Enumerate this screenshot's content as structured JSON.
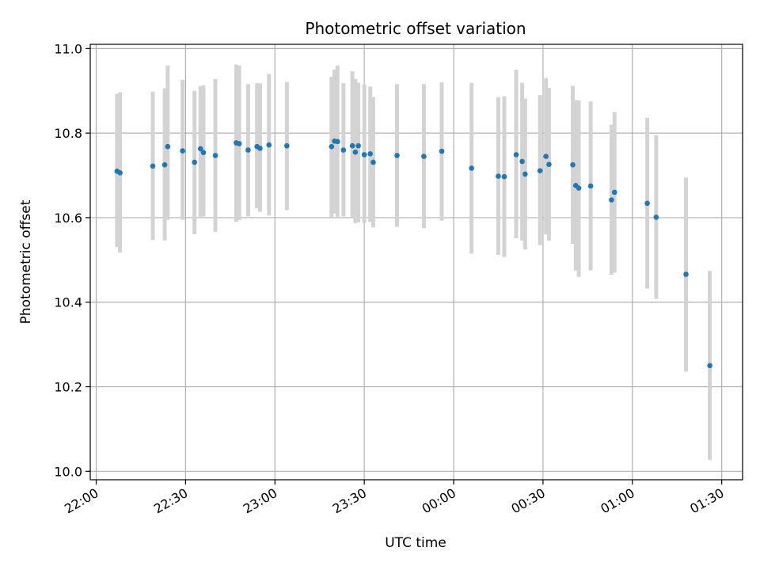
{
  "chart_data": {
    "type": "scatter",
    "title": "Photometric offset variation",
    "xlabel": "UTC time",
    "ylabel": "Photometric offset",
    "grid": true,
    "xlim": [
      "21:58",
      "01:37"
    ],
    "ylim": [
      9.98,
      11.01
    ],
    "x_ticks": [
      "22:00",
      "22:30",
      "23:00",
      "23:30",
      "00:00",
      "00:30",
      "01:00",
      "01:30"
    ],
    "y_ticks": [
      "10.0",
      "10.2",
      "10.4",
      "10.6",
      "10.8",
      "11.0"
    ],
    "colors": {
      "point": "#1f77b4",
      "errorbar": "#d3d3d3",
      "grid": "#b0b0b0"
    },
    "series": [
      {
        "x": [
          "22:07",
          "22:08",
          "22:19",
          "22:23",
          "22:24",
          "22:29",
          "22:33",
          "22:35",
          "22:36",
          "22:40",
          "22:47",
          "22:48",
          "22:51",
          "22:54",
          "22:55",
          "22:58",
          "23:04",
          "23:19",
          "23:20",
          "23:21",
          "23:23",
          "23:26",
          "23:27",
          "23:28",
          "23:30",
          "23:32",
          "23:33",
          "23:41",
          "23:50",
          "23:56",
          "00:06",
          "00:15",
          "00:17",
          "00:21",
          "00:23",
          "00:24",
          "00:29",
          "00:31",
          "00:32",
          "00:40",
          "00:41",
          "00:42",
          "00:46",
          "00:53",
          "00:54",
          "01:05",
          "01:08",
          "01:18",
          "01:26"
        ],
        "y": [
          10.71,
          10.706,
          10.722,
          10.725,
          10.768,
          10.758,
          10.731,
          10.763,
          10.754,
          10.747,
          10.777,
          10.775,
          10.76,
          10.768,
          10.764,
          10.772,
          10.77,
          10.768,
          10.781,
          10.78,
          10.76,
          10.77,
          10.755,
          10.77,
          10.749,
          10.751,
          10.731,
          10.747,
          10.745,
          10.757,
          10.717,
          10.698,
          10.697,
          10.749,
          10.733,
          10.703,
          10.711,
          10.745,
          10.726,
          10.725,
          10.676,
          10.67,
          10.675,
          10.642,
          10.66,
          10.634,
          10.601,
          10.466,
          10.25
        ],
        "err_low": [
          10.53,
          10.518,
          10.547,
          10.546,
          10.595,
          10.595,
          10.561,
          10.602,
          10.603,
          10.566,
          10.59,
          10.594,
          10.603,
          10.622,
          10.614,
          10.605,
          10.618,
          10.6,
          10.61,
          10.602,
          10.603,
          10.6,
          10.587,
          10.589,
          10.588,
          10.59,
          10.577,
          10.578,
          10.575,
          10.593,
          10.515,
          10.512,
          10.507,
          10.551,
          10.546,
          10.525,
          10.535,
          10.56,
          10.546,
          10.538,
          10.475,
          10.46,
          10.475,
          10.465,
          10.47,
          10.432,
          10.408,
          10.236,
          10.027
        ],
        "err_high": [
          10.893,
          10.897,
          10.898,
          10.906,
          10.96,
          10.926,
          10.9,
          10.911,
          10.913,
          10.928,
          10.962,
          10.96,
          10.916,
          10.918,
          10.917,
          10.94,
          10.921,
          10.933,
          10.95,
          10.96,
          10.918,
          10.946,
          10.928,
          10.919,
          10.915,
          10.91,
          10.885,
          10.916,
          10.916,
          10.92,
          10.919,
          10.885,
          10.887,
          10.95,
          10.919,
          10.882,
          10.89,
          10.93,
          10.907,
          10.912,
          10.878,
          10.877,
          10.875,
          10.82,
          10.85,
          10.836,
          10.795,
          10.695,
          10.474
        ]
      }
    ]
  }
}
